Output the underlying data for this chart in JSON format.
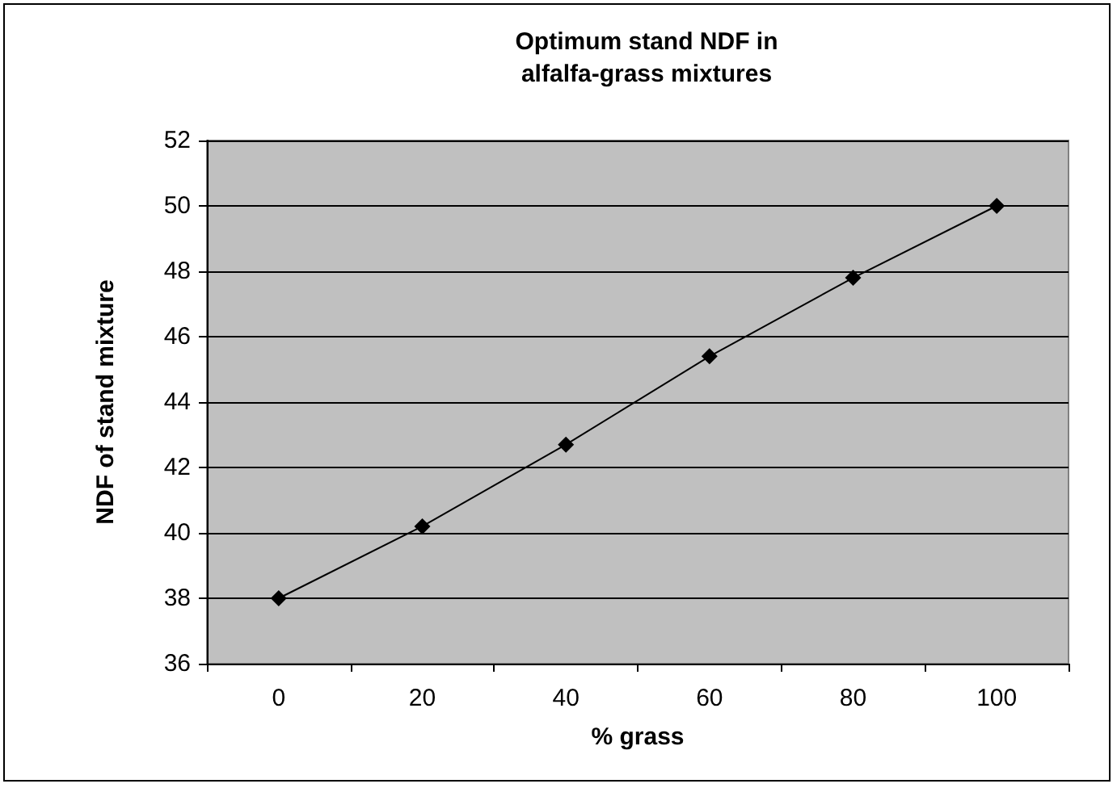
{
  "chart_data": {
    "type": "line",
    "title": "Optimum stand NDF in\nalfalfa-grass mixtures",
    "xlabel": "% grass",
    "ylabel": "NDF of stand mixture",
    "categories": [
      "0",
      "20",
      "40",
      "60",
      "80",
      "100"
    ],
    "series": [
      {
        "color": "#000000",
        "values": [
          38.0,
          40.2,
          42.7,
          45.4,
          47.8,
          50.0
        ]
      }
    ],
    "ylim": [
      36,
      52
    ],
    "yticks": [
      36,
      38,
      40,
      42,
      44,
      46,
      48,
      50,
      52
    ],
    "grid": "y",
    "marker": "diamond",
    "line_style": "solid"
  }
}
